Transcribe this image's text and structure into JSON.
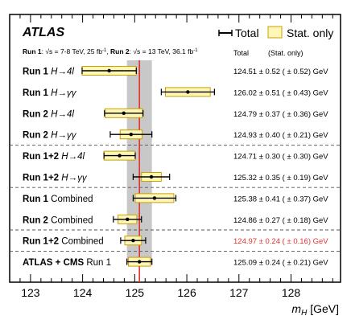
{
  "header": {
    "experiment": "ATLAS",
    "legend_total": "Total",
    "legend_stat": "Stat. only",
    "run_info": {
      "run1_label": "Run 1",
      "run1_text": ": √s = 7-8 TeV, 25 fb",
      "run1_sup": "-1",
      "run2_label": "Run 2",
      "run2_text": ": √s = 13 TeV, 36.1 fb",
      "run2_sup": "-1",
      "separator": ", "
    },
    "col_total": "Total",
    "col_stat": "(Stat. only)"
  },
  "colors": {
    "stat_fill": "#fff6b8",
    "stat_stroke": "#c8a000",
    "band": "#c8c8c8",
    "ref_line": "#e8312a",
    "highlight_text": "#e8312a"
  },
  "chart_data": {
    "type": "scatter",
    "title": "",
    "xlabel": "m",
    "xlabel_sub": "H",
    "xlabel_unit": " [GeV]",
    "xlim": [
      122.6,
      128.95
    ],
    "xticks": [
      123,
      124,
      125,
      126,
      127,
      128
    ],
    "reference_value": 125.09,
    "reference_band": [
      124.85,
      125.33
    ],
    "rows": [
      {
        "run": "Run 1",
        "channel": "H→4l",
        "value": 124.51,
        "total": 0.52,
        "stat": 0.52,
        "result_text": "124.51 ± 0.52 ( ± 0.52) GeV",
        "highlight": false
      },
      {
        "run": "Run 1",
        "channel": "H→γγ",
        "value": 126.02,
        "total": 0.51,
        "stat": 0.43,
        "result_text": "126.02 ± 0.51 ( ± 0.43) GeV",
        "highlight": false
      },
      {
        "run": "Run 2",
        "channel": "H→4l",
        "value": 124.79,
        "total": 0.37,
        "stat": 0.36,
        "result_text": "124.79 ± 0.37 ( ± 0.36) GeV",
        "highlight": false
      },
      {
        "run": "Run 2",
        "channel": "H→γγ",
        "value": 124.93,
        "total": 0.4,
        "stat": 0.21,
        "result_text": "124.93 ± 0.40 ( ± 0.21) GeV",
        "highlight": false
      },
      {
        "run": "Run 1+2",
        "channel": "H→4l",
        "value": 124.71,
        "total": 0.3,
        "stat": 0.3,
        "result_text": "124.71 ± 0.30 ( ± 0.30) GeV",
        "highlight": false
      },
      {
        "run": "Run 1+2",
        "channel": "H→γγ",
        "value": 125.32,
        "total": 0.35,
        "stat": 0.19,
        "result_text": "125.32 ± 0.35 ( ± 0.19) GeV",
        "highlight": false
      },
      {
        "run": "Run 1",
        "channel": "Combined",
        "value": 125.38,
        "total": 0.41,
        "stat": 0.37,
        "result_text": "125.38 ± 0.41 ( ± 0.37) GeV",
        "highlight": false
      },
      {
        "run": "Run 2",
        "channel": "Combined",
        "value": 124.86,
        "total": 0.27,
        "stat": 0.18,
        "result_text": "124.86 ± 0.27 ( ± 0.18) GeV",
        "highlight": false
      },
      {
        "run": "Run 1+2",
        "channel": "Combined",
        "value": 124.97,
        "total": 0.24,
        "stat": 0.16,
        "result_text": "124.97 ± 0.24 ( ± 0.16) GeV",
        "highlight": true
      },
      {
        "run": "ATLAS + CMS",
        "channel": "Run 1",
        "value": 125.09,
        "total": 0.24,
        "stat": 0.21,
        "result_text": "125.09 ± 0.24 ( ± 0.21) GeV",
        "highlight": false
      }
    ]
  }
}
